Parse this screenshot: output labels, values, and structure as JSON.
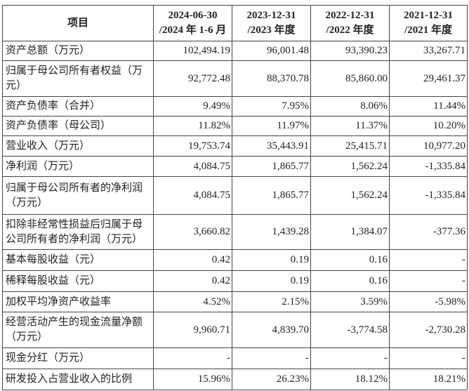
{
  "header": {
    "item": "项目",
    "periods": [
      {
        "line1": "2024-06-30",
        "line2": "/2024 年 1-6 月"
      },
      {
        "line1": "2023-12-31",
        "line2": "/2023 年度"
      },
      {
        "line1": "2022-12-31",
        "line2": "/2022 年度"
      },
      {
        "line1": "2021-12-31",
        "line2": "/2021 年度"
      }
    ]
  },
  "rows": [
    {
      "label": "资产总额（万元）",
      "values": [
        "102,494.19",
        "96,001.48",
        "93,390.23",
        "33,267.71"
      ]
    },
    {
      "label": "归属于母公司所有者权益（万元）",
      "values": [
        "92,772.48",
        "88,370.78",
        "85,860.00",
        "29,461.37"
      ]
    },
    {
      "label": "资产负债率（合并）",
      "values": [
        "9.49%",
        "7.95%",
        "8.06%",
        "11.44%"
      ]
    },
    {
      "label": "资产负债率（母公司）",
      "values": [
        "11.82%",
        "11.97%",
        "11.37%",
        "10.20%"
      ]
    },
    {
      "label": "营业收入（万元）",
      "values": [
        "19,753.74",
        "35,443.91",
        "25,415.71",
        "10,977.20"
      ]
    },
    {
      "label": "净利润（万元）",
      "values": [
        "4,084.75",
        "1,865.77",
        "1,562.24",
        "-1,335.84"
      ]
    },
    {
      "label": "归属于母公司所有者的净利润（万元）",
      "values": [
        "4,084.75",
        "1,865.77",
        "1,562.24",
        "-1,335.84"
      ]
    },
    {
      "label": "扣除非经常性损益后归属于母公司所有者的净利润（万元）",
      "values": [
        "3,660.82",
        "1,439.28",
        "1,384.07",
        "-377.36"
      ]
    },
    {
      "label": "基本每股收益（元）",
      "values": [
        "0.42",
        "0.19",
        "0.16",
        "-"
      ]
    },
    {
      "label": "稀释每股收益（元）",
      "values": [
        "0.42",
        "0.19",
        "0.16",
        "-"
      ]
    },
    {
      "label": "加权平均净资产收益率",
      "values": [
        "4.52%",
        "2.15%",
        "3.59%",
        "-5.98%"
      ]
    },
    {
      "label": "经营活动产生的现金流量净额（万元）",
      "values": [
        "9,960.71",
        "4,839.70",
        "-3,774.58",
        "-2,730.28"
      ]
    },
    {
      "label": "现金分红（万元）",
      "values": [
        "-",
        "-",
        "-",
        "-"
      ]
    },
    {
      "label": "研发投入占营业收入的比例",
      "values": [
        "15.96%",
        "26.23%",
        "18.12%",
        "18.21%"
      ]
    }
  ]
}
